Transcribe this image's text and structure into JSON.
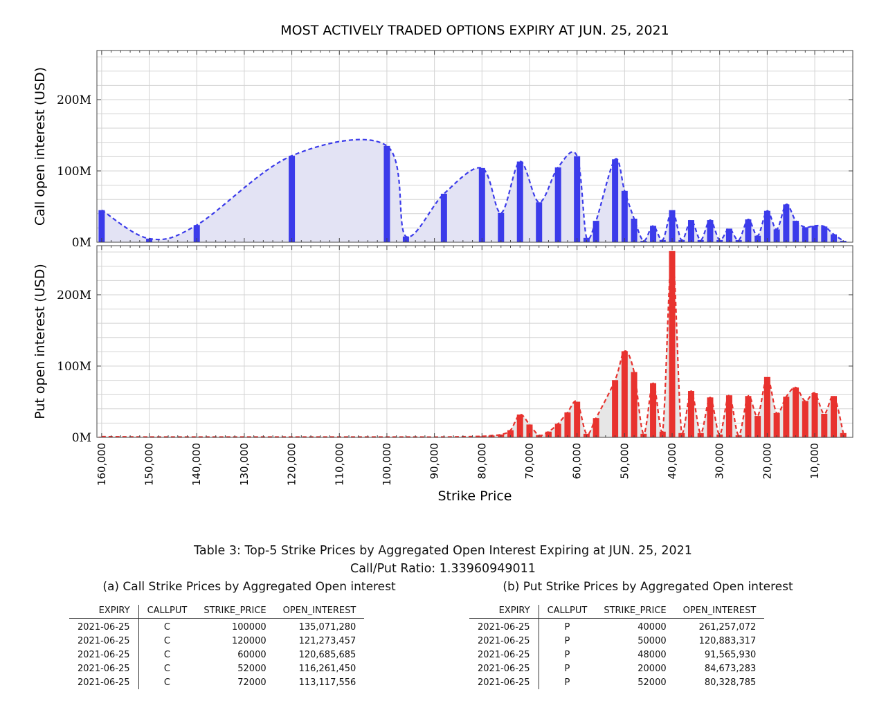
{
  "chart_data": [
    {
      "type": "bar",
      "title": "MOST ACTIVELY TRADED OPTIONS EXPIRY AT JUN. 25, 2021",
      "ylabel": "Call open interest (USD)",
      "xlabel": "Strike Price",
      "color": "#3b3bea",
      "fill": "#e3e3f4",
      "ylim": [
        0,
        265000000
      ],
      "yticks": [
        0,
        100000000,
        200000000
      ],
      "ytick_labels": [
        "0M",
        "100M",
        "200M"
      ],
      "xlim": [
        161000,
        2000
      ],
      "x": [
        160000,
        150000,
        140000,
        120000,
        100000,
        96000,
        88000,
        80000,
        76000,
        72000,
        68000,
        64000,
        60000,
        58000,
        56000,
        52000,
        50000,
        48000,
        46000,
        44000,
        42000,
        40000,
        38000,
        36000,
        34000,
        32000,
        30000,
        28000,
        26000,
        24000,
        22000,
        20000,
        18000,
        16000,
        14000,
        12000,
        10000,
        8000,
        6000,
        4000
      ],
      "values": [
        45000000,
        5000000,
        24000000,
        121273457,
        135071280,
        8000000,
        68000000,
        104000000,
        41000000,
        113117556,
        56000000,
        105000000,
        120685685,
        6000000,
        30000000,
        116261450,
        72000000,
        33000000,
        2000000,
        23000000,
        3000000,
        45000000,
        3000000,
        31000000,
        3000000,
        31000000,
        3000000,
        19000000,
        3000000,
        32000000,
        9000000,
        44000000,
        18000000,
        53000000,
        30000000,
        21000000,
        23000000,
        22000000,
        11000000,
        2000000
      ]
    },
    {
      "type": "bar",
      "ylabel": "Put open interest (USD)",
      "xlabel": "Strike Price",
      "color": "#e8322e",
      "fill": "#e6e6e6",
      "ylim": [
        0,
        265000000
      ],
      "yticks": [
        0,
        100000000,
        200000000
      ],
      "ytick_labels": [
        "0M",
        "100M",
        "200M"
      ],
      "xlim": [
        161000,
        2000
      ],
      "xticks": [
        160000,
        150000,
        140000,
        130000,
        120000,
        110000,
        100000,
        90000,
        80000,
        70000,
        60000,
        50000,
        40000,
        30000,
        20000,
        10000
      ],
      "xtick_labels": [
        "160,000",
        "150,000",
        "140,000",
        "130,000",
        "120,000",
        "110,000",
        "100,000",
        "90,000",
        "80,000",
        "70,000",
        "60,000",
        "50,000",
        "40,000",
        "30,000",
        "20,000",
        "10,000"
      ],
      "x": [
        160000,
        150000,
        140000,
        120000,
        100000,
        96000,
        88000,
        80000,
        78000,
        76000,
        74000,
        72000,
        70000,
        68000,
        66000,
        64000,
        62000,
        60000,
        58000,
        56000,
        52000,
        50000,
        48000,
        46000,
        44000,
        42000,
        40000,
        38000,
        36000,
        34000,
        32000,
        30000,
        28000,
        26000,
        24000,
        22000,
        20000,
        18000,
        16000,
        14000,
        12000,
        10000,
        8000,
        6000,
        4000
      ],
      "values": [
        1000000,
        500000,
        500000,
        500000,
        500000,
        500000,
        500000,
        1500000,
        2500000,
        4000000,
        10000000,
        32000000,
        18000000,
        3000000,
        8000000,
        19000000,
        35000000,
        50000000,
        5000000,
        27000000,
        80328785,
        120883317,
        91565930,
        5000000,
        76000000,
        8000000,
        261257072,
        6000000,
        65000000,
        6000000,
        56000000,
        4000000,
        59000000,
        3000000,
        58000000,
        30000000,
        84673283,
        34000000,
        57000000,
        70000000,
        51000000,
        62000000,
        33000000,
        58000000,
        6000000
      ]
    }
  ],
  "caption": {
    "table_title": "Table 3: Top-5 Strike Prices by Aggregated Open Interest Expiring at JUN. 25, 2021",
    "ratio": "Call/Put Ratio: 1.33960949011",
    "call_title": "(a) Call Strike Prices by Aggregated Open interest",
    "put_title": "(b) Put Strike Prices by Aggregated Open interest"
  },
  "tables": {
    "columns": [
      "EXPIRY",
      "CALLPUT",
      "STRIKE_PRICE",
      "OPEN_INTEREST"
    ],
    "calls": [
      [
        "2021-06-25",
        "C",
        "100000",
        "135,071,280"
      ],
      [
        "2021-06-25",
        "C",
        "120000",
        "121,273,457"
      ],
      [
        "2021-06-25",
        "C",
        "60000",
        "120,685,685"
      ],
      [
        "2021-06-25",
        "C",
        "52000",
        "116,261,450"
      ],
      [
        "2021-06-25",
        "C",
        "72000",
        "113,117,556"
      ]
    ],
    "puts": [
      [
        "2021-06-25",
        "P",
        "40000",
        "261,257,072"
      ],
      [
        "2021-06-25",
        "P",
        "50000",
        "120,883,317"
      ],
      [
        "2021-06-25",
        "P",
        "48000",
        "91,565,930"
      ],
      [
        "2021-06-25",
        "P",
        "20000",
        "84,673,283"
      ],
      [
        "2021-06-25",
        "P",
        "52000",
        "80,328,785"
      ]
    ]
  }
}
